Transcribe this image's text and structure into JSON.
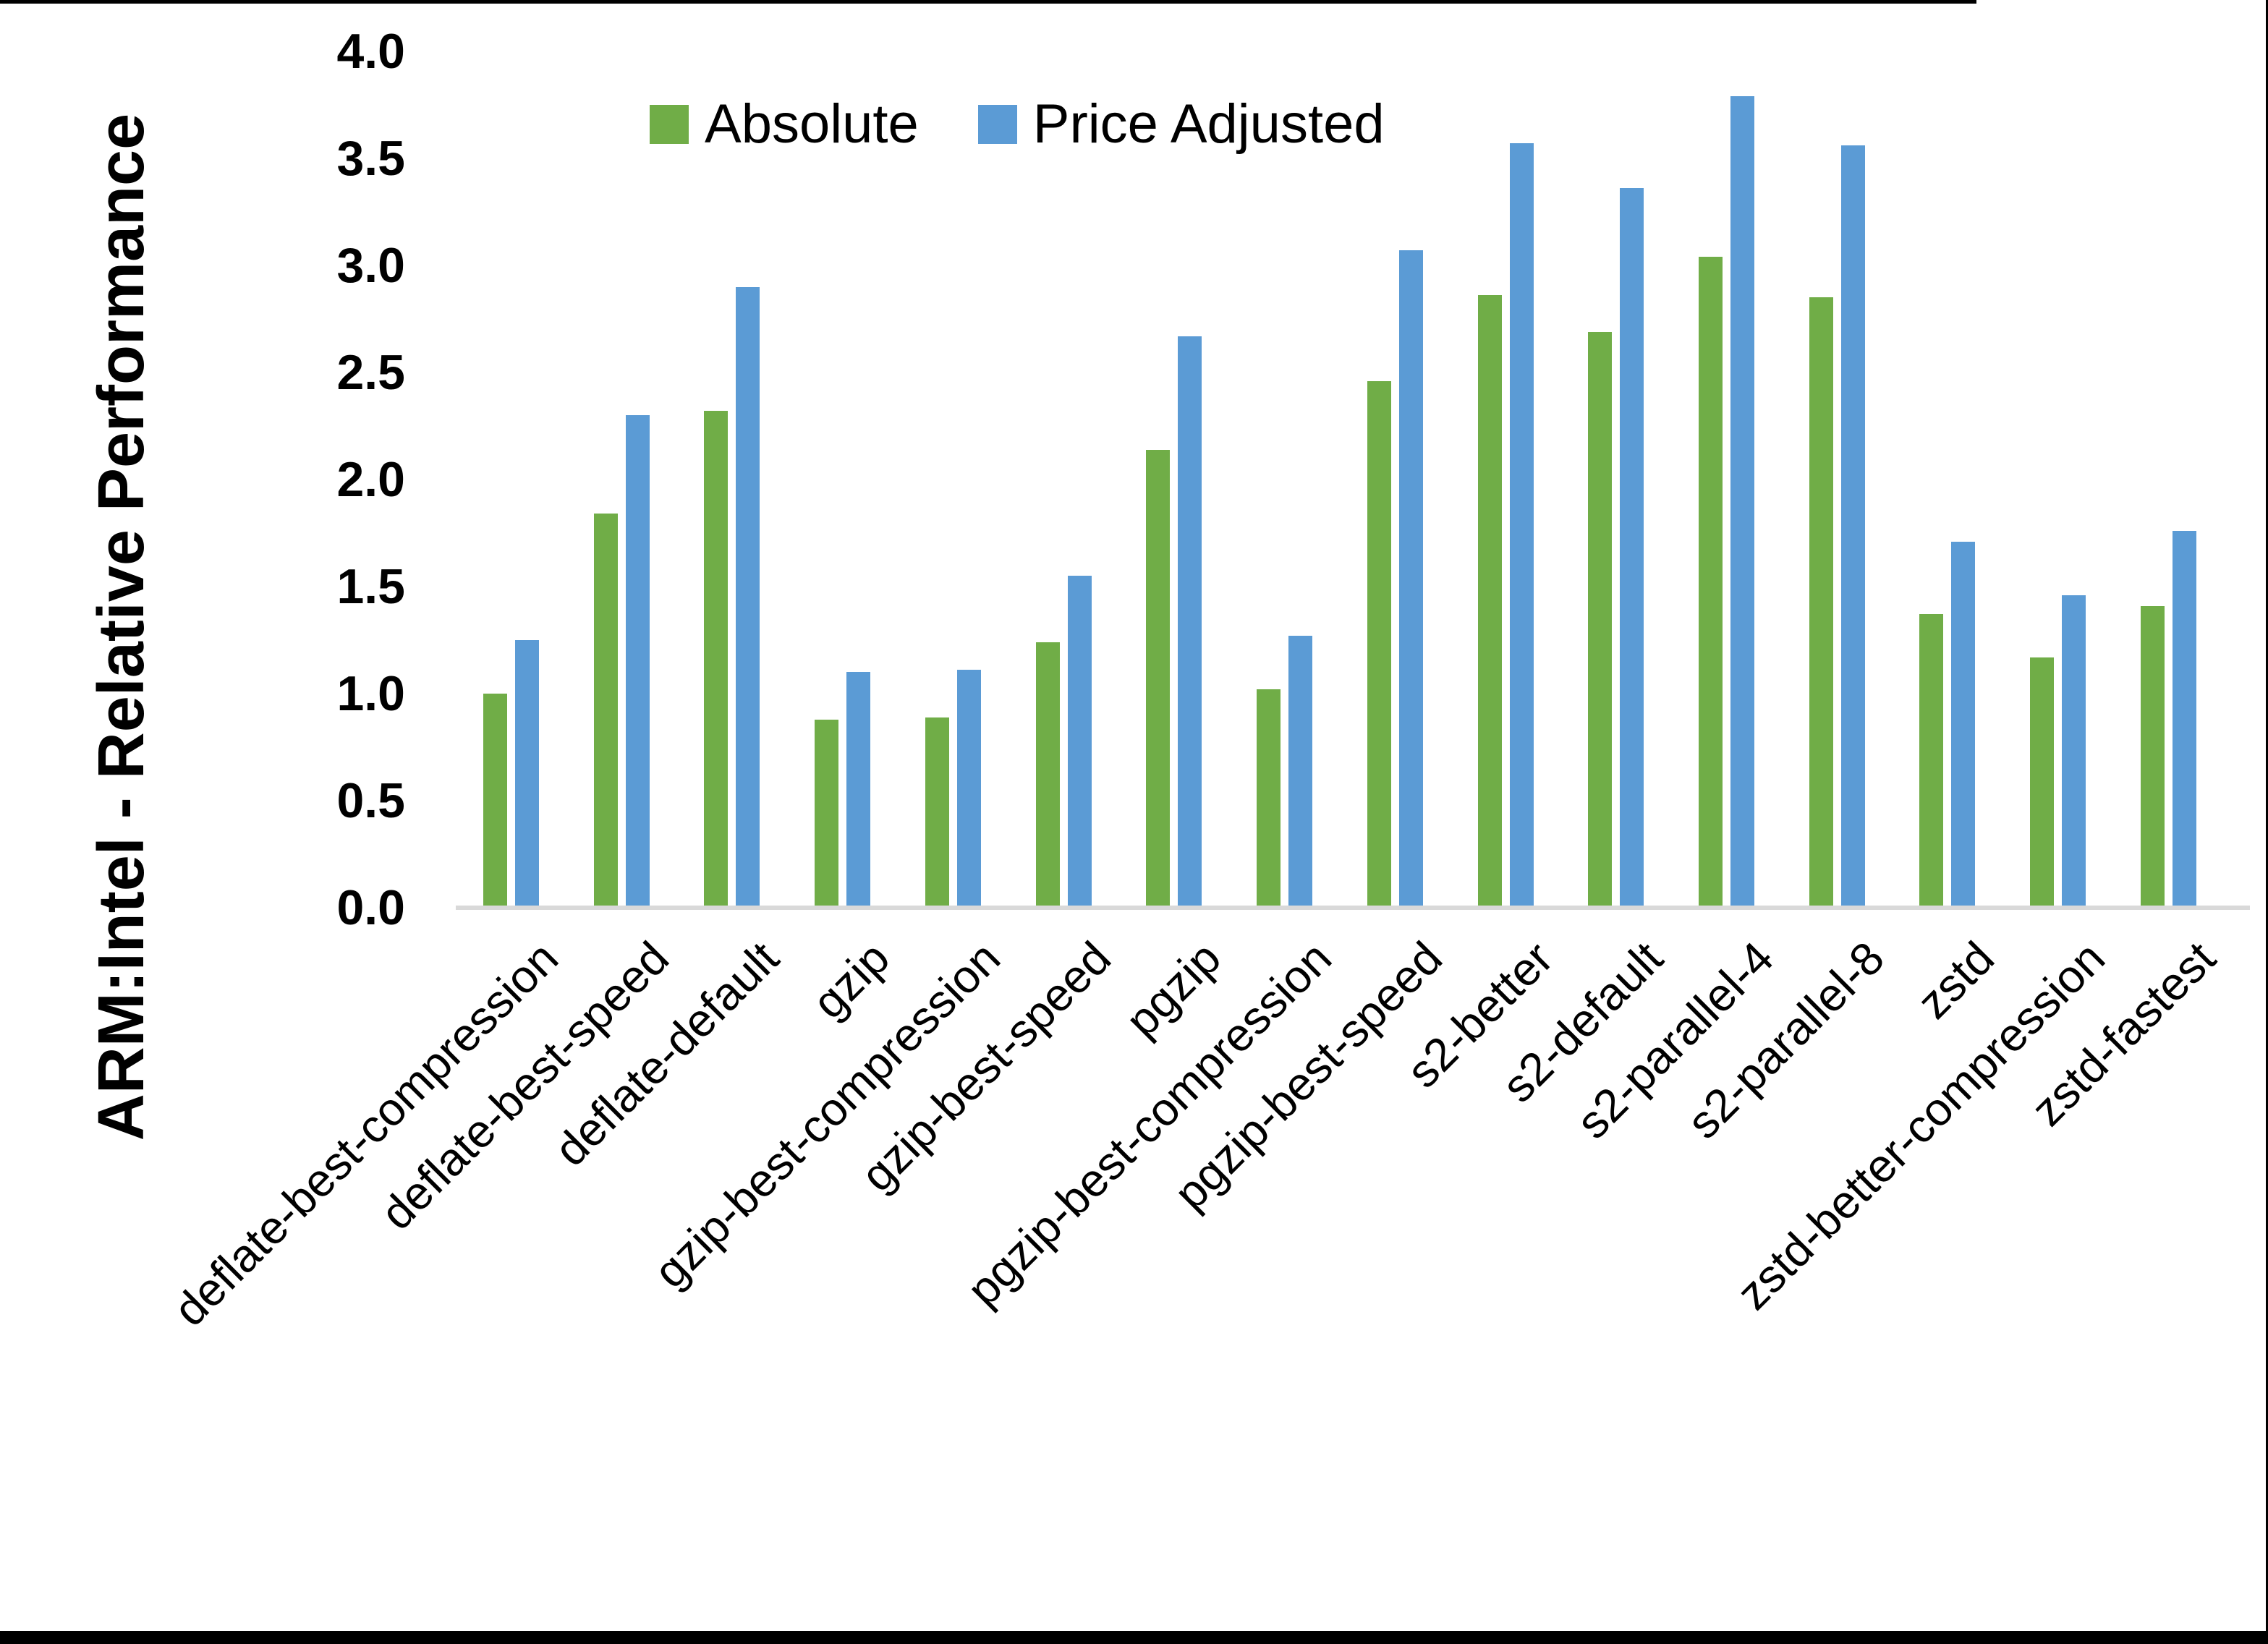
{
  "chart_data": {
    "type": "bar",
    "title": "",
    "xlabel": "",
    "ylabel": "ARM:Intel - Relative Performance",
    "ylim": [
      0.0,
      4.0
    ],
    "ytick_step": 0.5,
    "yticks": [
      "0.0",
      "0.5",
      "1.0",
      "1.5",
      "2.0",
      "2.5",
      "3.0",
      "3.5",
      "4.0"
    ],
    "grid": false,
    "legend_position": "top-center",
    "axis_line_color": "#D9D9D9",
    "text_color": "#000000",
    "categories": [
      "deflate-best-compression",
      "deflate-best-speed",
      "deflate-default",
      "gzip",
      "gzip-best-compression",
      "gzip-best-speed",
      "pgzip",
      "pgzip-best-compression",
      "pgzip-best-speed",
      "s2-better",
      "s2-default",
      "s2-parallel-4",
      "s2-parallel-8",
      "zstd",
      "zstd-better-compression",
      "zstd-fastest"
    ],
    "series": [
      {
        "name": "Absolute",
        "color": "#70AD47",
        "values": [
          1.0,
          1.84,
          2.32,
          0.88,
          0.89,
          1.24,
          2.14,
          1.02,
          2.46,
          2.86,
          2.69,
          3.04,
          2.85,
          1.37,
          1.17,
          1.41
        ]
      },
      {
        "name": "Price Adjusted",
        "color": "#5B9BD5",
        "values": [
          1.25,
          2.3,
          2.9,
          1.1,
          1.11,
          1.55,
          2.67,
          1.27,
          3.07,
          3.57,
          3.36,
          3.79,
          3.56,
          1.71,
          1.46,
          1.76
        ]
      }
    ]
  }
}
